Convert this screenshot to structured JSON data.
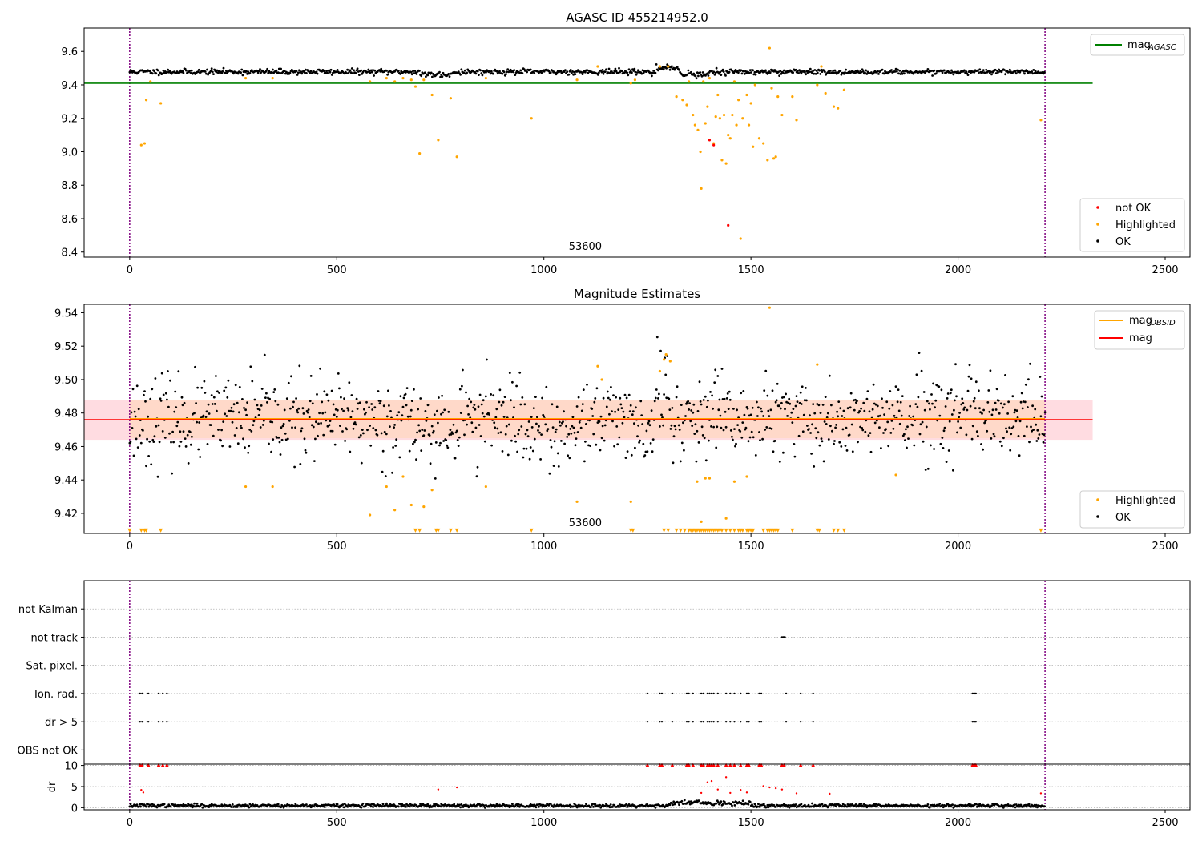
{
  "chart_data": [
    {
      "type": "scatter",
      "id": "agasc",
      "title": "AGASC ID 455214952.0",
      "xlim": [
        -110,
        2560
      ],
      "ylim": [
        8.37,
        9.74
      ],
      "xticks": [
        0,
        500,
        1000,
        1500,
        2000,
        2500
      ],
      "yticks": [
        8.4,
        8.6,
        8.8,
        9.0,
        9.2,
        9.4,
        9.6
      ],
      "ytick_labels": [
        "8.4",
        "8.6",
        "8.8",
        "9.0",
        "9.2",
        "9.4",
        "9.6"
      ],
      "annotation": {
        "text": "53600",
        "x": 1100,
        "y": 8.42
      },
      "vlines": [
        0,
        2210
      ],
      "hline": {
        "name": "mag_AGASC",
        "y": 9.41,
        "xrange": [
          -110,
          2325
        ],
        "color": "#008000"
      },
      "legend_line": {
        "label": "mag",
        "sub": "AGASC",
        "color": "#008000",
        "position": "top-right"
      },
      "legend_points": [
        {
          "label": "not OK",
          "color": "#ff0000"
        },
        {
          "label": "Highlighted",
          "color": "#ffa500"
        },
        {
          "label": "OK",
          "color": "#000000"
        }
      ],
      "legend_points_position": "bottom-right",
      "series": [
        {
          "name": "OK",
          "color": "#000000",
          "band": {
            "from": 0,
            "to": 2210,
            "step": 2.2,
            "center": 9.478,
            "spread": 0.018,
            "seed": 11,
            "dips": [
              [
                700,
                780,
                -0.015
              ],
              [
                1270,
                1330,
                0.02
              ],
              [
                1330,
                1400,
                -0.015
              ]
            ]
          }
        },
        {
          "name": "Highlighted",
          "color": "#ffa500",
          "points": [
            [
              28,
              9.04
            ],
            [
              36,
              9.05
            ],
            [
              40,
              9.31
            ],
            [
              50,
              9.42
            ],
            [
              75,
              9.29
            ],
            [
              280,
              9.44
            ],
            [
              345,
              9.44
            ],
            [
              580,
              9.42
            ],
            [
              620,
              9.44
            ],
            [
              640,
              9.42
            ],
            [
              660,
              9.44
            ],
            [
              680,
              9.43
            ],
            [
              690,
              9.39
            ],
            [
              700,
              8.99
            ],
            [
              710,
              9.43
            ],
            [
              730,
              9.34
            ],
            [
              745,
              9.07
            ],
            [
              775,
              9.32
            ],
            [
              790,
              8.97
            ],
            [
              860,
              9.44
            ],
            [
              970,
              9.2
            ],
            [
              1080,
              9.43
            ],
            [
              1130,
              9.51
            ],
            [
              1210,
              9.41
            ],
            [
              1220,
              9.43
            ],
            [
              1280,
              9.51
            ],
            [
              1300,
              9.51
            ],
            [
              1320,
              9.33
            ],
            [
              1335,
              9.31
            ],
            [
              1345,
              9.28
            ],
            [
              1350,
              9.42
            ],
            [
              1360,
              9.22
            ],
            [
              1365,
              9.16
            ],
            [
              1372,
              9.13
            ],
            [
              1378,
              9.0
            ],
            [
              1380,
              8.78
            ],
            [
              1385,
              9.42
            ],
            [
              1390,
              9.17
            ],
            [
              1395,
              9.27
            ],
            [
              1400,
              9.44
            ],
            [
              1410,
              9.05
            ],
            [
              1415,
              9.21
            ],
            [
              1420,
              9.34
            ],
            [
              1425,
              9.2
            ],
            [
              1430,
              8.95
            ],
            [
              1435,
              9.22
            ],
            [
              1440,
              8.93
            ],
            [
              1445,
              9.1
            ],
            [
              1450,
              9.08
            ],
            [
              1455,
              9.22
            ],
            [
              1460,
              9.42
            ],
            [
              1465,
              9.16
            ],
            [
              1470,
              9.31
            ],
            [
              1475,
              8.48
            ],
            [
              1480,
              9.2
            ],
            [
              1490,
              9.34
            ],
            [
              1495,
              9.16
            ],
            [
              1500,
              9.29
            ],
            [
              1505,
              9.03
            ],
            [
              1510,
              9.4
            ],
            [
              1520,
              9.08
            ],
            [
              1530,
              9.05
            ],
            [
              1540,
              8.95
            ],
            [
              1545,
              9.62
            ],
            [
              1550,
              9.38
            ],
            [
              1555,
              8.96
            ],
            [
              1560,
              8.97
            ],
            [
              1565,
              9.33
            ],
            [
              1575,
              9.22
            ],
            [
              1600,
              9.33
            ],
            [
              1610,
              9.19
            ],
            [
              1660,
              9.4
            ],
            [
              1670,
              9.51
            ],
            [
              1680,
              9.35
            ],
            [
              1700,
              9.27
            ],
            [
              1710,
              9.26
            ],
            [
              1725,
              9.37
            ],
            [
              2200,
              9.19
            ]
          ]
        },
        {
          "name": "not OK",
          "color": "#ff0000",
          "points": [
            [
              1400,
              9.07
            ],
            [
              1410,
              9.04
            ],
            [
              1445,
              8.56
            ]
          ]
        }
      ]
    },
    {
      "type": "scatter",
      "id": "estimates",
      "title": "Magnitude Estimates",
      "xlim": [
        -110,
        2560
      ],
      "ylim": [
        9.408,
        9.545
      ],
      "xticks": [
        0,
        500,
        1000,
        1500,
        2000,
        2500
      ],
      "yticks": [
        9.42,
        9.44,
        9.46,
        9.48,
        9.5,
        9.52,
        9.54
      ],
      "ytick_labels": [
        "9.42",
        "9.44",
        "9.46",
        "9.48",
        "9.50",
        "9.52",
        "9.54"
      ],
      "annotation": {
        "text": "53600",
        "x": 1100,
        "y": 9.413
      },
      "vlines": [
        0,
        2210
      ],
      "mean_line": {
        "y": 9.476,
        "xrange": [
          -110,
          2325
        ],
        "color": "#ff0000"
      },
      "obsid_line": {
        "y": 9.4765,
        "xrange": [
          0,
          2210
        ],
        "color": "#ffa500"
      },
      "band_red": {
        "y0": 9.464,
        "y1": 9.488,
        "xrange": [
          -110,
          2325
        ],
        "color": "#ffc0c8"
      },
      "band_orange": {
        "y0": 9.465,
        "y1": 9.488,
        "xrange": [
          0,
          2210
        ],
        "color": "#ffd8c0"
      },
      "legend_lines": [
        {
          "label": "mag",
          "sub": "OBSID",
          "color": "#ffa500"
        },
        {
          "label": "mag",
          "sub": "",
          "color": "#ff0000"
        }
      ],
      "legend_lines_position": "top-right",
      "legend_points": [
        {
          "label": "Highlighted",
          "color": "#ffa500"
        },
        {
          "label": "OK",
          "color": "#000000"
        }
      ],
      "legend_points_position": "bottom-right",
      "series": [
        {
          "name": "OK",
          "color": "#000000",
          "band": {
            "from": 0,
            "to": 2210,
            "step": 2.0,
            "center": 9.476,
            "spread": 0.028,
            "seed": 23,
            "dips": [
              [
                690,
                790,
                -0.012
              ],
              [
                1210,
                1250,
                -0.01
              ],
              [
                1270,
                1300,
                0.018
              ]
            ]
          }
        },
        {
          "name": "Highlighted",
          "color": "#ffa500",
          "points": [
            [
              280,
              9.436
            ],
            [
              345,
              9.436
            ],
            [
              580,
              9.419
            ],
            [
              620,
              9.436
            ],
            [
              640,
              9.422
            ],
            [
              660,
              9.442
            ],
            [
              680,
              9.425
            ],
            [
              710,
              9.424
            ],
            [
              730,
              9.434
            ],
            [
              860,
              9.436
            ],
            [
              1080,
              9.427
            ],
            [
              1130,
              9.508
            ],
            [
              1140,
              9.5
            ],
            [
              1210,
              9.427
            ],
            [
              1280,
              9.505
            ],
            [
              1290,
              9.512
            ],
            [
              1295,
              9.515
            ],
            [
              1305,
              9.511
            ],
            [
              1370,
              9.439
            ],
            [
              1380,
              9.415
            ],
            [
              1390,
              9.441
            ],
            [
              1400,
              9.441
            ],
            [
              1440,
              9.417
            ],
            [
              1460,
              9.439
            ],
            [
              1490,
              9.442
            ],
            [
              1545,
              9.543
            ],
            [
              1660,
              9.509
            ],
            [
              1850,
              9.443
            ]
          ]
        },
        {
          "name": "Highlighted-lower-limit",
          "color": "#ffa500",
          "marker": "triangle-down",
          "y": 9.41,
          "xs": [
            0,
            28,
            36,
            40,
            75,
            690,
            700,
            740,
            745,
            775,
            790,
            970,
            1210,
            1215,
            1290,
            1300,
            1320,
            1330,
            1340,
            1350,
            1355,
            1360,
            1365,
            1370,
            1375,
            1380,
            1385,
            1390,
            1395,
            1400,
            1405,
            1410,
            1415,
            1420,
            1425,
            1430,
            1440,
            1450,
            1460,
            1470,
            1475,
            1480,
            1490,
            1495,
            1500,
            1505,
            1530,
            1540,
            1545,
            1550,
            1555,
            1560,
            1565,
            1600,
            1660,
            1665,
            1700,
            1710,
            1725,
            2200
          ]
        }
      ]
    },
    {
      "type": "scatter",
      "id": "flags",
      "title": "",
      "xlim": [
        -110,
        2560
      ],
      "ylim": [
        -0.5,
        6.0
      ],
      "vlines": [
        0,
        2210
      ],
      "ytick_labels": [
        "OBS not OK",
        "dr > 5",
        "Ion. rad.",
        "Sat. pixel.",
        "not track",
        "not Kalman"
      ],
      "rows": [
        {
          "label": "OBS not OK",
          "xs": []
        },
        {
          "label": "dr > 5",
          "xs": [
            25,
            30,
            45,
            70,
            80,
            90,
            1250,
            1280,
            1285,
            1310,
            1345,
            1350,
            1360,
            1380,
            1385,
            1395,
            1400,
            1405,
            1410,
            1420,
            1440,
            1450,
            1460,
            1475,
            1490,
            1495,
            1520,
            1525,
            1585,
            1620,
            1650,
            2035,
            2038,
            2040,
            2043
          ]
        },
        {
          "label": "Ion. rad.",
          "xs": [
            25,
            30,
            45,
            70,
            80,
            90,
            1250,
            1280,
            1285,
            1310,
            1345,
            1350,
            1360,
            1380,
            1385,
            1395,
            1400,
            1405,
            1410,
            1420,
            1440,
            1450,
            1460,
            1475,
            1490,
            1495,
            1520,
            1525,
            1585,
            1620,
            1650,
            2035,
            2038,
            2040,
            2043
          ]
        },
        {
          "label": "Sat. pixel.",
          "xs": []
        },
        {
          "label": "not track",
          "xs": [
            1575,
            1578,
            1580,
            1582
          ]
        },
        {
          "label": "not Kalman",
          "xs": []
        }
      ]
    },
    {
      "type": "scatter",
      "id": "dr",
      "title": "",
      "ylabel": "dr",
      "xlim": [
        -110,
        2560
      ],
      "ylim": [
        -0.5,
        10.3
      ],
      "xticks": [
        0,
        500,
        1000,
        1500,
        2000,
        2500
      ],
      "yticks": [
        0,
        5,
        10
      ],
      "ytick_labels": [
        "0",
        "5",
        "10"
      ],
      "vlines": [
        0,
        2210
      ],
      "series": [
        {
          "name": "dr",
          "color": "#000000",
          "band": {
            "from": 0,
            "to": 2210,
            "step": 2.2,
            "center": 0.5,
            "spread": 0.45,
            "seed": 37,
            "dips": [
              [
                1300,
                1500,
                0.6
              ]
            ]
          }
        },
        {
          "name": "dr high",
          "color": "#ff0000",
          "points": [
            [
              28,
              4.2
            ],
            [
              33,
              3.6
            ],
            [
              745,
              4.3
            ],
            [
              790,
              4.8
            ],
            [
              1380,
              3.5
            ],
            [
              1395,
              6.0
            ],
            [
              1405,
              6.3
            ],
            [
              1420,
              4.3
            ],
            [
              1440,
              7.2
            ],
            [
              1450,
              3.5
            ],
            [
              1475,
              4.2
            ],
            [
              1490,
              3.6
            ],
            [
              1530,
              5.1
            ],
            [
              1545,
              4.8
            ],
            [
              1560,
              4.6
            ],
            [
              1575,
              4.3
            ],
            [
              1610,
              3.4
            ],
            [
              1690,
              3.3
            ],
            [
              2200,
              3.4
            ]
          ]
        },
        {
          "name": "dr clipped",
          "color": "#ff0000",
          "marker": "triangle-up",
          "y": 10,
          "xs": [
            25,
            30,
            45,
            70,
            80,
            90,
            1250,
            1280,
            1285,
            1310,
            1345,
            1350,
            1360,
            1380,
            1385,
            1395,
            1400,
            1405,
            1410,
            1420,
            1440,
            1450,
            1460,
            1475,
            1490,
            1495,
            1520,
            1525,
            1575,
            1580,
            1620,
            1650,
            2035,
            2038,
            2040,
            2043
          ]
        }
      ]
    }
  ]
}
